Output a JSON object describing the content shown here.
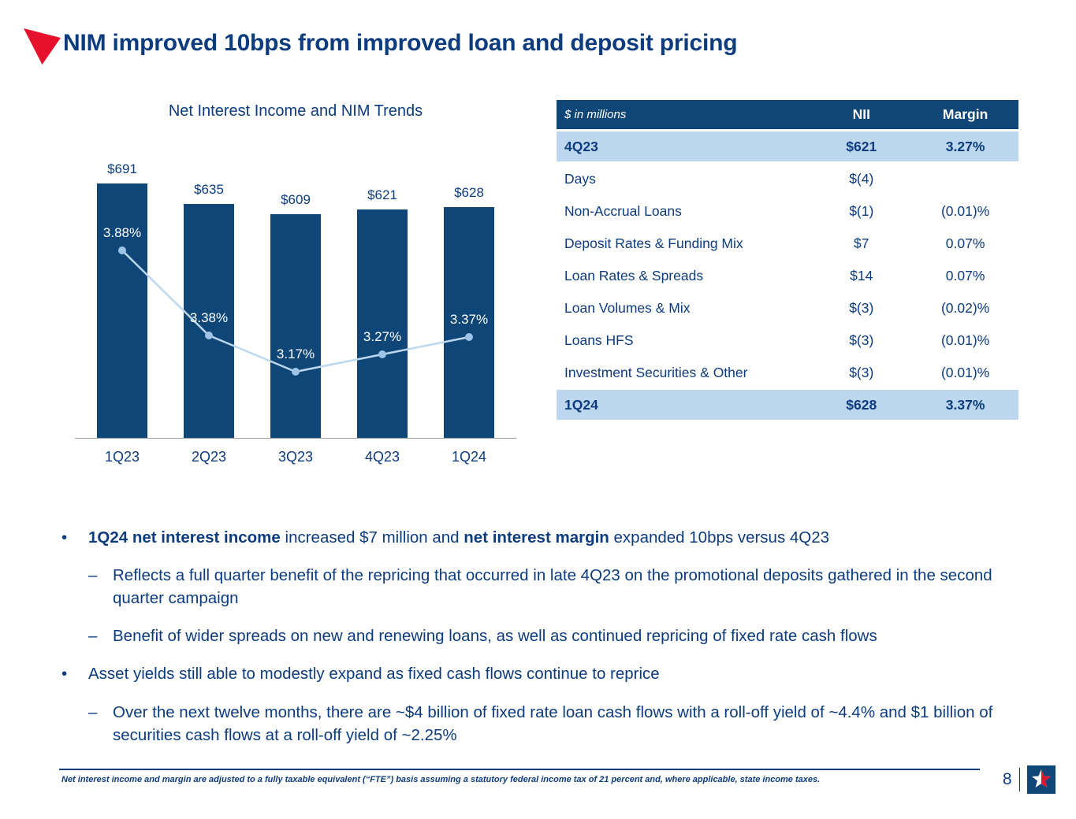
{
  "slide": {
    "title": "NIM improved 10bps from improved loan and deposit pricing",
    "page_number": "8",
    "footnote": "Net interest income and margin are adjusted to a fully taxable equivalent (“FTE”) basis assuming a statutory federal income tax of 21 percent and, where applicable, state income taxes."
  },
  "colors": {
    "primary_blue": "#0C3C7D",
    "bar_navy": "#0F4678",
    "line_light_blue": "#BDD7EE",
    "point_blue": "#9DC3E6",
    "highlight_row": "#BDD7EE",
    "accent_red": "#E8112D"
  },
  "chart_data": {
    "type": "bar+line",
    "title": "Net Interest Income and NIM Trends",
    "categories": [
      "1Q23",
      "2Q23",
      "3Q23",
      "4Q23",
      "1Q24"
    ],
    "series": [
      {
        "name": "Net Interest Income ($ millions)",
        "type": "bar",
        "values": [
          691,
          635,
          609,
          621,
          628
        ],
        "labels": [
          "$691",
          "$635",
          "$609",
          "$621",
          "$628"
        ]
      },
      {
        "name": "NIM (%)",
        "type": "line",
        "values": [
          3.88,
          3.38,
          3.17,
          3.27,
          3.37
        ],
        "labels": [
          "3.88%",
          "3.38%",
          "3.17%",
          "3.27%",
          "3.37%"
        ]
      }
    ],
    "bar_ylim": [
      0,
      760
    ],
    "line_ylim": [
      2.78,
      4.42
    ],
    "grid": false,
    "legend": "none"
  },
  "table": {
    "header": {
      "col1": "$ in millions",
      "col2": "NII",
      "col3": "Margin"
    },
    "rows": [
      {
        "label": "4Q23",
        "nii": "$621",
        "margin": "3.27%",
        "highlight": true
      },
      {
        "label": "Days",
        "nii": "$(4)",
        "margin": "",
        "highlight": false
      },
      {
        "label": "Non-Accrual Loans",
        "nii": "$(1)",
        "margin": "(0.01)%",
        "highlight": false
      },
      {
        "label": "Deposit Rates & Funding Mix",
        "nii": "$7",
        "margin": "0.07%",
        "highlight": false
      },
      {
        "label": "Loan Rates & Spreads",
        "nii": "$14",
        "margin": "0.07%",
        "highlight": false
      },
      {
        "label": "Loan Volumes & Mix",
        "nii": "$(3)",
        "margin": "(0.02)%",
        "highlight": false
      },
      {
        "label": "Loans HFS",
        "nii": "$(3)",
        "margin": "(0.01)%",
        "highlight": false
      },
      {
        "label": "Investment Securities & Other",
        "nii": "$(3)",
        "margin": "(0.01)%",
        "highlight": false
      },
      {
        "label": "1Q24",
        "nii": "$628",
        "margin": "3.37%",
        "highlight": true
      }
    ]
  },
  "bullets": [
    {
      "level": 1,
      "marker": "•",
      "segments": [
        {
          "text": "1Q24 net interest income",
          "bold": true
        },
        {
          "text": " increased $7 million and ",
          "bold": false
        },
        {
          "text": "net interest margin",
          "bold": true
        },
        {
          "text": " expanded 10bps versus 4Q23",
          "bold": false
        }
      ]
    },
    {
      "level": 2,
      "marker": "–",
      "segments": [
        {
          "text": "Reflects a full quarter benefit of the repricing that occurred in late 4Q23 on the promotional deposits gathered in the second quarter campaign",
          "bold": false
        }
      ]
    },
    {
      "level": 2,
      "marker": "–",
      "segments": [
        {
          "text": "Benefit of wider spreads on new and renewing loans, as well as continued repricing of fixed rate cash flows",
          "bold": false
        }
      ]
    },
    {
      "level": 1,
      "marker": "•",
      "segments": [
        {
          "text": "Asset yields still able to modestly expand as fixed cash flows continue to reprice",
          "bold": false
        }
      ]
    },
    {
      "level": 2,
      "marker": "–",
      "segments": [
        {
          "text": "Over the next twelve months, there are ~$4 billion of fixed rate loan cash flows with a roll-off yield of ~4.4% and $1 billion of securities cash flows at a roll-off yield of ~2.25%",
          "bold": false
        }
      ]
    }
  ]
}
